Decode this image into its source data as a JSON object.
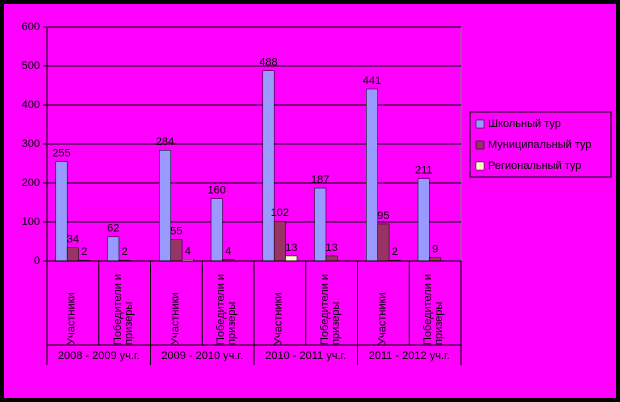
{
  "chart_data": {
    "type": "bar",
    "categories": [
      "Участники",
      "Победители и призеры",
      "Участники",
      "Победители и призеры",
      "Участники",
      "Победители и призеры",
      "Участники",
      "Победители и призеры"
    ],
    "group_labels": [
      "2008 - 2009 уч.г.",
      "2009 - 2010 уч.г.",
      "2010 - 2011 уч.г.",
      "2011 - 2012 уч.г."
    ],
    "series": [
      {
        "name": "Школьный тур",
        "color": "#9999ff",
        "values": [
          255,
          62,
          284,
          160,
          488,
          187,
          441,
          211
        ]
      },
      {
        "name": "Муниципальный тур",
        "color": "#993366",
        "values": [
          34,
          2,
          55,
          4,
          102,
          13,
          95,
          9
        ]
      },
      {
        "name": "Региональный тур",
        "color": "#ffffcc",
        "values": [
          2,
          null,
          4,
          null,
          13,
          null,
          2,
          null
        ]
      }
    ],
    "ylim": [
      0,
      600
    ],
    "yticks": [
      0,
      100,
      200,
      300,
      400,
      500,
      600
    ],
    "grid": true
  }
}
